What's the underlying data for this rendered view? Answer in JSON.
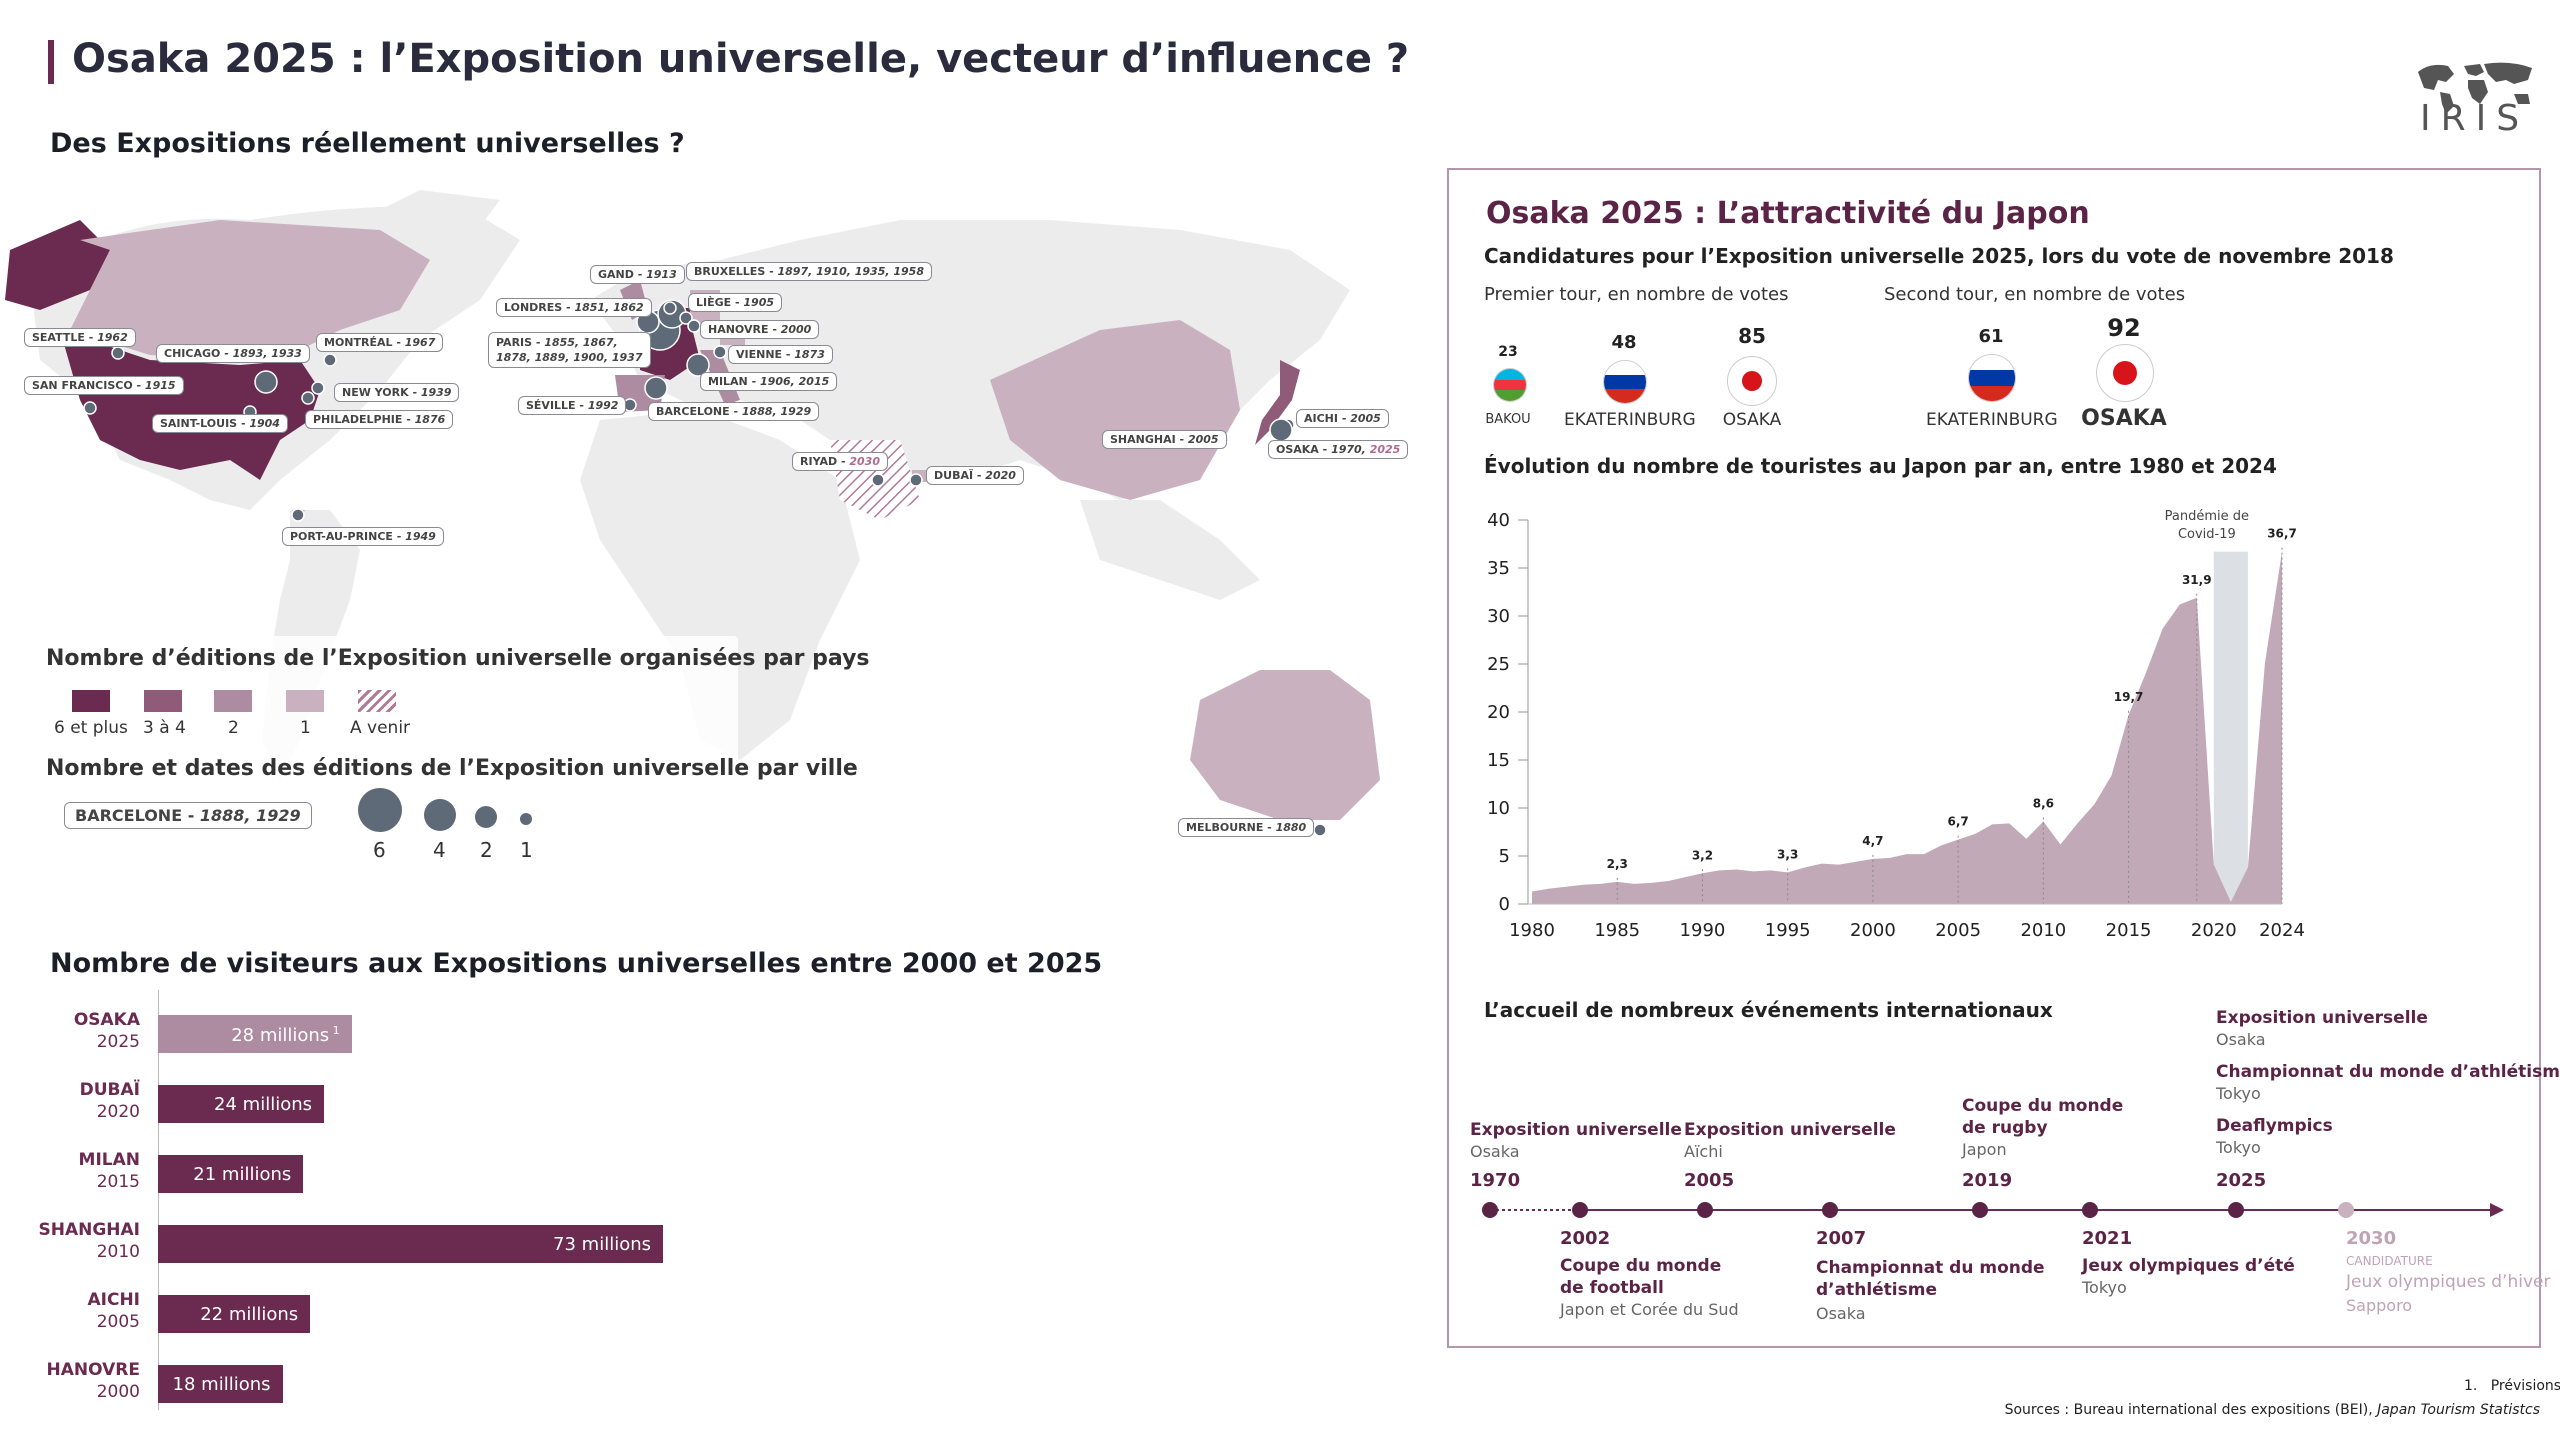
{
  "header": {
    "title": "Osaka 2025 : l’Exposition universelle, vecteur d’influence ?",
    "logo_text": "IRIS"
  },
  "map_section": {
    "title": "Des Expositions réellement universelles ?",
    "cities": [
      {
        "name": "SEATTLE",
        "years": "1962"
      },
      {
        "name": "SAN FRANCISCO",
        "years": "1915"
      },
      {
        "name": "CHICAGO",
        "years": "1893, 1933"
      },
      {
        "name": "MONTRÉAL",
        "years": "1967"
      },
      {
        "name": "NEW YORK",
        "years": "1939"
      },
      {
        "name": "PHILADELPHIE",
        "years": "1876"
      },
      {
        "name": "SAINT-LOUIS",
        "years": "1904"
      },
      {
        "name": "PORT-AU-PRINCE",
        "years": "1949"
      },
      {
        "name": "GAND",
        "years": "1913"
      },
      {
        "name": "BRUXELLES",
        "years": "1897, 1910, 1935, 1958"
      },
      {
        "name": "LONDRES",
        "years": "1851, 1862"
      },
      {
        "name": "LIÈGE",
        "years": "1905"
      },
      {
        "name": "HANOVRE",
        "years": "2000"
      },
      {
        "name": "PARIS",
        "years": "1855, 1867,",
        "years2": "1878, 1889, 1900, 1937"
      },
      {
        "name": "VIENNE",
        "years": "1873"
      },
      {
        "name": "MILAN",
        "years": "1906, 2015"
      },
      {
        "name": "SÉVILLE",
        "years": "1992"
      },
      {
        "name": "BARCELONE",
        "years": "1888, 1929"
      },
      {
        "name": "RIYAD",
        "years": "2030"
      },
      {
        "name": "DUBAÏ",
        "years": "2020"
      },
      {
        "name": "SHANGHAI",
        "years": "2005"
      },
      {
        "name": "AICHI",
        "years": "2005"
      },
      {
        "name": "OSAKA",
        "years": "1970,",
        "years_future": "2025"
      },
      {
        "name": "MELBOURNE",
        "years": "1880"
      }
    ],
    "legend": {
      "count_title": "Nombre d’éditions de l’Exposition universelle organisées par pays",
      "count_items": [
        {
          "label": "6 et plus",
          "color": "#6b2a4f"
        },
        {
          "label": "3 à 4",
          "color": "#8f5b78"
        },
        {
          "label": "2",
          "color": "#ad8ba0"
        },
        {
          "label": "1",
          "color": "#c9b1c0"
        },
        {
          "label": "A venir",
          "color": "hatched"
        }
      ],
      "city_title": "Nombre et dates des éditions de l’Exposition universelle par ville",
      "example_city": "BARCELONE",
      "example_years": "1888, 1929",
      "bubble_sizes": [
        "6",
        "4",
        "2",
        "1"
      ]
    }
  },
  "visitors": {
    "title": "Nombre de visiteurs aux Expositions universelles entre 2000 et 2025",
    "unit_label": "millions",
    "footnote_marker": "1",
    "rows": [
      {
        "city": "OSAKA",
        "year": "2025",
        "value": 28,
        "label": "28 millions",
        "color": "#ad8ba0"
      },
      {
        "city": "DUBAÏ",
        "year": "2020",
        "value": 24,
        "label": "24 millions",
        "color": "#6b2a4f"
      },
      {
        "city": "MILAN",
        "year": "2015",
        "value": 21,
        "label": "21 millions",
        "color": "#6b2a4f"
      },
      {
        "city": "SHANGHAI",
        "year": "2010",
        "value": 73,
        "label": "73 millions",
        "color": "#6b2a4f"
      },
      {
        "city": "AICHI",
        "year": "2005",
        "value": 22,
        "label": "22 millions",
        "color": "#6b2a4f"
      },
      {
        "city": "HANOVRE",
        "year": "2000",
        "value": 18,
        "label": "18 millions",
        "color": "#6b2a4f"
      }
    ]
  },
  "panel": {
    "title": "Osaka 2025 : L’attractivité du Japon",
    "candidatures_title": "Candidatures pour l’Exposition universelle 2025, lors du vote de novembre 2018",
    "round1_label": "Premier tour, en nombre de votes",
    "round2_label": "Second tour, en nombre de votes",
    "round1": [
      {
        "country": "BAKOU",
        "votes": "23",
        "flag": "azerbaijan"
      },
      {
        "country": "EKATERINBURG",
        "votes": "48",
        "flag": "russia"
      },
      {
        "country": "OSAKA",
        "votes": "85",
        "flag": "japan"
      }
    ],
    "round2": [
      {
        "country": "EKATERINBURG",
        "votes": "61",
        "flag": "russia"
      },
      {
        "country": "OSAKA",
        "votes": "92",
        "flag": "japan"
      }
    ],
    "tourism_title": "Évolution du nombre de touristes au Japon par an, entre 1980 et 2024",
    "covid_label_1": "Pandémie de",
    "covid_label_2": "Covid-19",
    "events_title": "L’accueil de nombreux événements internationaux",
    "timeline_above": [
      {
        "title": "Exposition universelle",
        "place": "Osaka",
        "year": "1970"
      },
      {
        "title": "Exposition universelle",
        "place": "Aïchi",
        "year": "2005"
      },
      {
        "title": "Coupe du monde",
        "title2": "de rugby",
        "place": "Japon",
        "year": "2019"
      },
      {
        "title": "Exposition universelle",
        "place": "Osaka",
        "title_b": "Championnat du monde d’athlétisme",
        "place_b": "Tokyo",
        "title_c": "Deaflympics",
        "place_c": "Tokyo",
        "year": "2025"
      }
    ],
    "timeline_below": [
      {
        "year": "2002",
        "title": "Coupe du monde",
        "title2": "de football",
        "place": "Japon et Corée du Sud"
      },
      {
        "year": "2007",
        "title": "Championnat du monde",
        "title2": "d’athlétisme",
        "place": "Osaka"
      },
      {
        "year": "2021",
        "title": "Jeux olympiques d’été",
        "place": "Tokyo"
      },
      {
        "year": "2030",
        "status": "CANDIDATURE",
        "title": "Jeux olympiques d’hiver",
        "place": "Sapporo"
      }
    ]
  },
  "footer": {
    "note_number": "1.",
    "note": "Prévisions",
    "sources_prefix": "Sources : Bureau international des expositions (BEI), ",
    "sources_italic": "Japan Tourism Statistcs"
  },
  "chart_data": [
    {
      "type": "bar",
      "orientation": "horizontal",
      "title": "Nombre de visiteurs aux Expositions universelles entre 2000 et 2025",
      "categories": [
        "OSAKA 2025",
        "DUBAÏ 2020",
        "MILAN 2015",
        "SHANGHAI 2010",
        "AICHI 2005",
        "HANOVRE 2000"
      ],
      "values": [
        28,
        24,
        21,
        73,
        22,
        18
      ],
      "unit": "millions"
    },
    {
      "type": "area",
      "title": "Évolution du nombre de touristes au Japon par an, entre 1980 et 2024",
      "x": [
        1980,
        1981,
        1982,
        1983,
        1984,
        1985,
        1986,
        1987,
        1988,
        1989,
        1990,
        1991,
        1992,
        1993,
        1994,
        1995,
        1996,
        1997,
        1998,
        1999,
        2000,
        2001,
        2002,
        2003,
        2004,
        2005,
        2006,
        2007,
        2008,
        2009,
        2010,
        2011,
        2012,
        2013,
        2014,
        2015,
        2016,
        2017,
        2018,
        2019,
        2020,
        2021,
        2022,
        2023,
        2024
      ],
      "y": [
        1.3,
        1.6,
        1.8,
        2.0,
        2.1,
        2.3,
        2.1,
        2.2,
        2.4,
        2.8,
        3.2,
        3.5,
        3.6,
        3.4,
        3.5,
        3.3,
        3.8,
        4.2,
        4.1,
        4.4,
        4.7,
        4.8,
        5.2,
        5.2,
        6.1,
        6.7,
        7.3,
        8.3,
        8.4,
        6.8,
        8.6,
        6.2,
        8.4,
        10.4,
        13.4,
        19.7,
        24.0,
        28.7,
        31.2,
        31.9,
        4.1,
        0.2,
        3.8,
        25.1,
        36.7
      ],
      "labeled_points": [
        {
          "x": 1985,
          "y": 2.3,
          "label": "2,3"
        },
        {
          "x": 1990,
          "y": 3.2,
          "label": "3,2"
        },
        {
          "x": 1995,
          "y": 3.3,
          "label": "3,3"
        },
        {
          "x": 2000,
          "y": 4.7,
          "label": "4,7"
        },
        {
          "x": 2005,
          "y": 6.7,
          "label": "6,7"
        },
        {
          "x": 2010,
          "y": 8.6,
          "label": "8,6"
        },
        {
          "x": 2015,
          "y": 19.7,
          "label": "19,7"
        },
        {
          "x": 2019,
          "y": 31.9,
          "label": "31,9"
        },
        {
          "x": 2024,
          "y": 36.7,
          "label": "36,7"
        }
      ],
      "x_ticks": [
        "1980",
        "1985",
        "1990",
        "1995",
        "2000",
        "2005",
        "2010",
        "2015",
        "2020",
        "2024"
      ],
      "y_ticks": [
        "0",
        "5",
        "10",
        "15",
        "20",
        "25",
        "30",
        "35",
        "40"
      ],
      "ylim": [
        0,
        40
      ],
      "highlight_range": [
        2020,
        2022
      ],
      "highlight_label": "Pandémie de Covid-19",
      "color": "#c2a9b8"
    }
  ]
}
